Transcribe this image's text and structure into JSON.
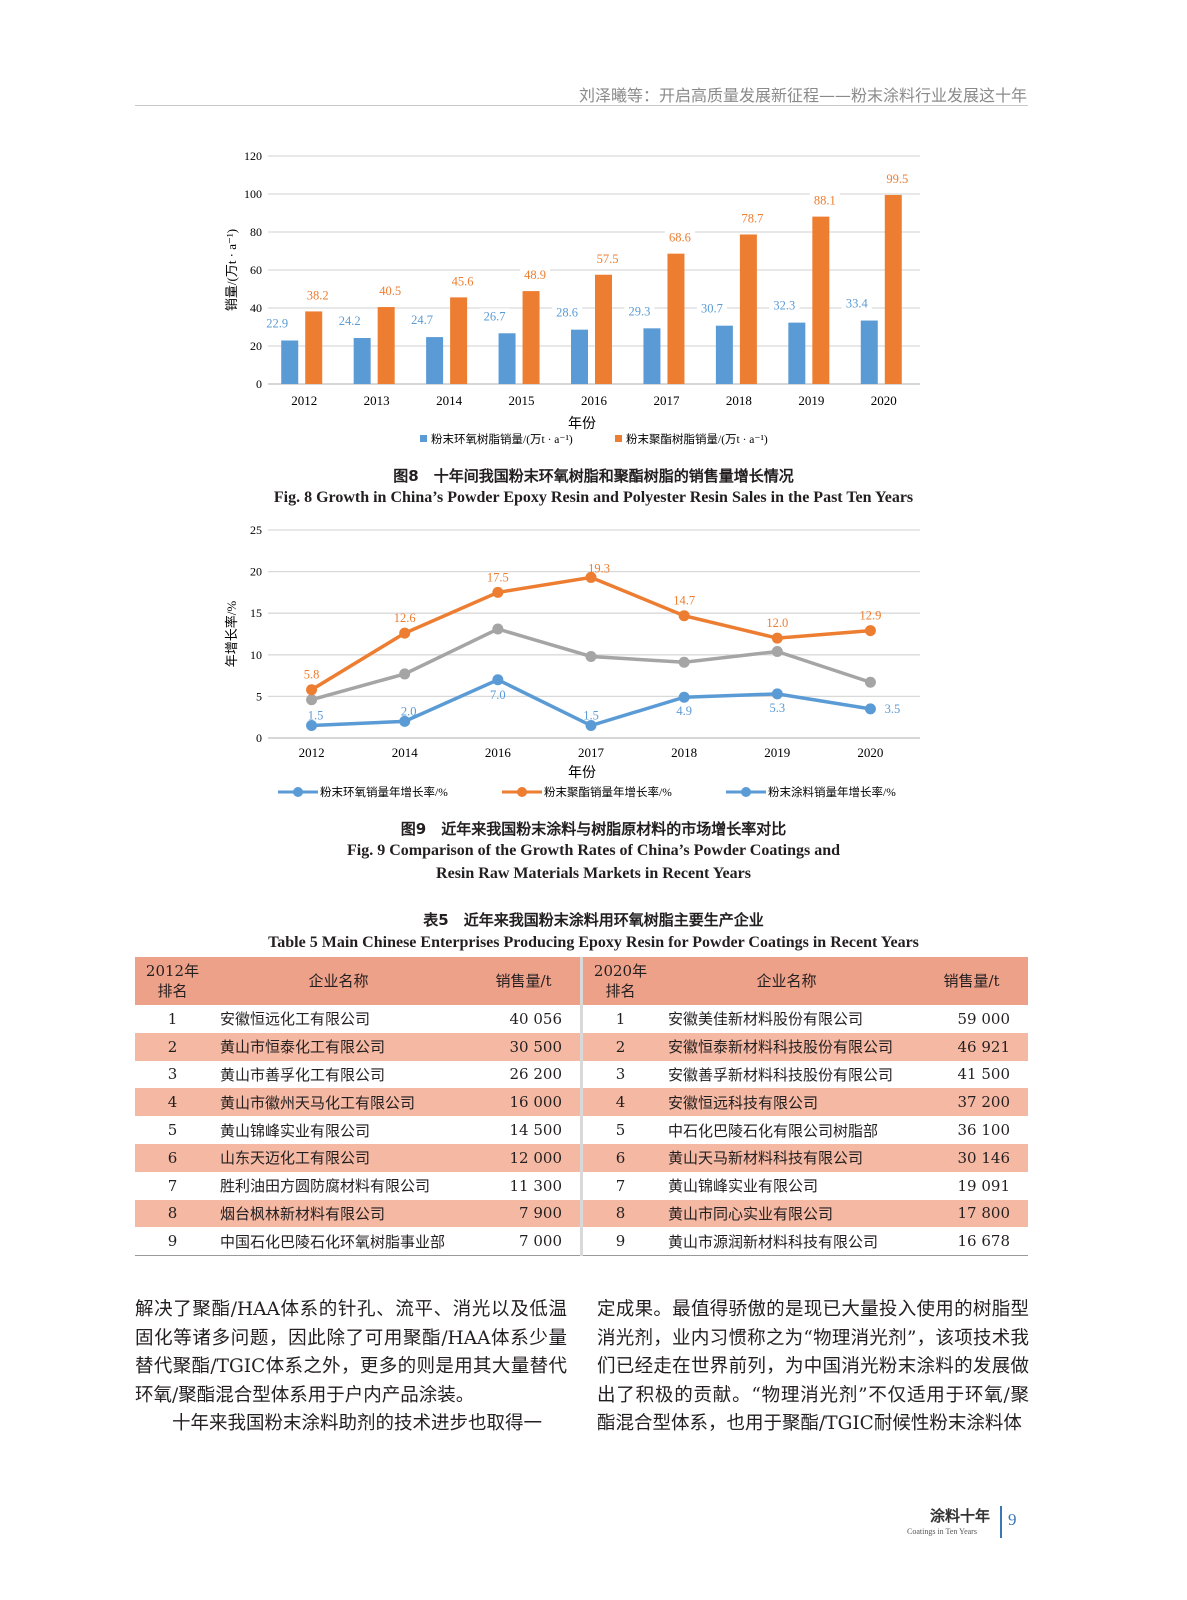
{
  "running_head": "刘泽曦等：开启高质量发展新征程——粉末涂料行业发展这十年",
  "chart_data": [
    {
      "type": "bar",
      "categories": [
        "2012",
        "2013",
        "2014",
        "2015",
        "2016",
        "2017",
        "2018",
        "2019",
        "2020"
      ],
      "series": [
        {
          "name": "粉末环氧树脂销量/(万t · a⁻¹)",
          "color": "#5b9bd5",
          "values": [
            22.9,
            24.2,
            24.7,
            26.7,
            28.6,
            29.3,
            30.7,
            32.3,
            33.4
          ]
        },
        {
          "name": "粉末聚酯树脂销量/(万t · a⁻¹)",
          "color": "#ed7d31",
          "values": [
            38.2,
            40.5,
            45.6,
            48.9,
            57.5,
            68.6,
            78.7,
            88.1,
            99.5
          ]
        }
      ],
      "xlabel": "年份",
      "ylabel": "销量/(万t · a⁻¹)",
      "ylim": [
        0,
        120
      ],
      "yticks": [
        0,
        20,
        40,
        60,
        80,
        100,
        120
      ],
      "grid": true,
      "legend": "bottom"
    },
    {
      "type": "line",
      "categories": [
        "2012",
        "2014",
        "2016",
        "2017",
        "2018",
        "2019",
        "2020"
      ],
      "series": [
        {
          "name": "粉末环氧销量年增长率/%",
          "color": "#5b9bd5",
          "values": [
            1.5,
            2.0,
            7.0,
            1.5,
            4.9,
            5.3,
            3.5
          ],
          "labels": [
            "1.5",
            "2.0",
            "7.0",
            "1.5",
            "4.9",
            "5.3",
            "3.5"
          ]
        },
        {
          "name": "粉末聚酯销量年增长率/%",
          "color": "#ed7d31",
          "values": [
            5.8,
            12.6,
            17.5,
            19.3,
            14.7,
            12.0,
            12.9
          ],
          "labels": [
            "5.8",
            "12.6",
            "17.5",
            "19.3",
            "14.7",
            "12.0",
            "12.9"
          ]
        },
        {
          "name": "粉末涂料销量年增长率/%",
          "color": "#a5a5a5",
          "legend_color": "#5b9bd5",
          "values": [
            4.6,
            7.7,
            13.1,
            9.8,
            9.1,
            10.4,
            6.7
          ]
        }
      ],
      "xlabel": "年份",
      "ylabel": "年增长率/%",
      "ylim": [
        0,
        25
      ],
      "yticks": [
        0,
        5,
        10,
        15,
        20,
        25
      ],
      "grid": true,
      "legend": "bottom"
    }
  ],
  "fig8": {
    "caption_cn": "图8　十年间我国粉末环氧树脂和聚酯树脂的销售量增长情况",
    "caption_en": "Fig. 8   Growth in China’s Powder Epoxy Resin and Polyester Resin Sales in the Past Ten Years"
  },
  "fig9": {
    "caption_cn": "图9　近年来我国粉末涂料与树脂原材料的市场增长率对比",
    "caption_en_1": "Fig. 9   Comparison of the Growth Rates of China’s Powder Coatings and",
    "caption_en_2": "Resin Raw Materials Markets in Recent Years"
  },
  "table5": {
    "caption_cn": "表5　近年来我国粉末涂料用环氧树脂主要生产企业",
    "caption_en": "Table 5   Main Chinese Enterprises Producing Epoxy Resin for Powder Coatings in Recent Years",
    "headers": [
      "2012年\n排名",
      "企业名称",
      "销售量/t",
      "2020年\n排名",
      "企业名称",
      "销售量/t"
    ],
    "header_rank_2012": [
      "2012年",
      "排名"
    ],
    "header_rank_2020": [
      "2020年",
      "排名"
    ],
    "rows": [
      [
        "1",
        "安徽恒远化工有限公司",
        "40 056",
        "1",
        "安徽美佳新材料股份有限公司",
        "59 000"
      ],
      [
        "2",
        "黄山市恒泰化工有限公司",
        "30 500",
        "2",
        "安徽恒泰新材料科技股份有限公司",
        "46 921"
      ],
      [
        "3",
        "黄山市善孚化工有限公司",
        "26 200",
        "3",
        "安徽善孚新材料科技股份有限公司",
        "41 500"
      ],
      [
        "4",
        "黄山市徽州天马化工有限公司",
        "16 000",
        "4",
        "安徽恒远科技有限公司",
        "37 200"
      ],
      [
        "5",
        "黄山锦峰实业有限公司",
        "14 500",
        "5",
        "中石化巴陵石化有限公司树脂部",
        "36 100"
      ],
      [
        "6",
        "山东天迈化工有限公司",
        "12 000",
        "6",
        "黄山天马新材料科技有限公司",
        "30 146"
      ],
      [
        "7",
        "胜利油田方圆防腐材料有限公司",
        "11 300",
        "7",
        "黄山锦峰实业有限公司",
        "19 091"
      ],
      [
        "8",
        "烟台枫林新材料有限公司",
        "7 900",
        "8",
        "黄山市同心实业有限公司",
        "17 800"
      ],
      [
        "9",
        "中国石化巴陵石化环氧树脂事业部",
        "7 000",
        "9",
        "黄山市源润新材料科技有限公司",
        "16 678"
      ]
    ]
  },
  "body": {
    "left_p1": "解决了聚酯/HAA体系的针孔、流平、消光以及低温固化等诸多问题，因此除了可用聚酯/HAA体系少量替代聚酯/TGIC体系之外，更多的则是用其大量替代环氧/聚酯混合型体系用于户内产品涂装。",
    "left_p2": "十年来我国粉末涂料助剂的技术进步也取得一",
    "right_p1": "定成果。最值得骄傲的是现已大量投入使用的树脂型消光剂，业内习惯称之为“物理消光剂”，该项技术我们已经走在世界前列，为中国消光粉末涂料的发展做出了积极的贡献。“物理消光剂”不仅适用于环氧/聚酯混合型体系，也用于聚酯/TGIC耐候性粉末涂料体"
  },
  "footer": {
    "journal_cn": "涂料十年",
    "journal_en": "Coatings in Ten Years",
    "page": "9"
  }
}
